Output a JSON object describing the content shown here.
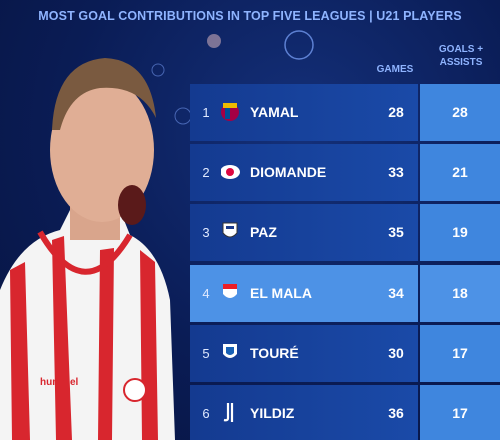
{
  "header": {
    "title": "MOST GOAL CONTRIBUTIONS IN TOP FIVE LEAGUES | U21 PLAYERS"
  },
  "table": {
    "columns": {
      "games": "GAMES",
      "goals_assists": "GOALS + ASSISTS"
    },
    "rows": [
      {
        "rank": 1,
        "player": "YAMAL",
        "games": 28,
        "goals_assists": 28
      },
      {
        "rank": 2,
        "player": "DIOMANDE",
        "games": 33,
        "goals_assists": 21
      },
      {
        "rank": 3,
        "player": "PAZ",
        "games": 35,
        "goals_assists": 19
      },
      {
        "rank": 4,
        "player": "EL MALA",
        "games": 34,
        "goals_assists": 18
      },
      {
        "rank": 5,
        "player": "TOURÉ",
        "games": 30,
        "goals_assists": 17
      },
      {
        "rank": 6,
        "player": "YILDIZ",
        "games": 36,
        "goals_assists": 17
      }
    ]
  }
}
